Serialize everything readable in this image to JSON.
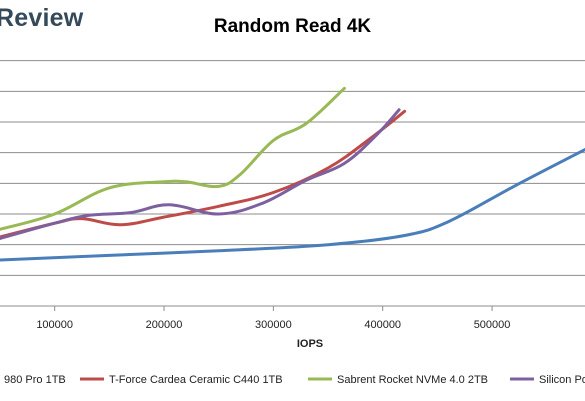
{
  "brand": "Review",
  "chart_data": {
    "type": "line",
    "title": "Random Read 4K",
    "xlabel": "IOPS",
    "ylabel": "",
    "grid": true,
    "legend_position": "bottom",
    "xlim": [
      50000,
      585000
    ],
    "ylim": [
      0,
      9
    ],
    "x_ticks": [
      100000,
      200000,
      300000,
      400000,
      500000
    ],
    "x_tick_labels": [
      "100000",
      "200000",
      "300000",
      "400000",
      "500000"
    ],
    "y_gridlines": [
      1,
      2,
      3,
      4,
      5,
      6,
      7,
      8
    ],
    "series": [
      {
        "name": "980 Pro 1TB",
        "legend_label": "980 Pro 1TB",
        "color": "#4a7ebb",
        "x": [
          50000,
          150000,
          250000,
          350000,
          420000,
          460000,
          520000,
          585000
        ],
        "y": [
          1.5,
          1.65,
          1.8,
          2.0,
          2.3,
          2.75,
          3.9,
          5.1
        ]
      },
      {
        "name": "T-Force Cardea Ceramic C440 1TB",
        "legend_label": "T-Force Cardea Ceramic C440 1TB",
        "color": "#be4b48",
        "x": [
          50000,
          100000,
          125000,
          160000,
          200000,
          250000,
          300000,
          350000,
          390000,
          420000
        ],
        "y": [
          2.25,
          2.7,
          2.85,
          2.65,
          2.9,
          3.25,
          3.7,
          4.5,
          5.5,
          6.35
        ]
      },
      {
        "name": "Sabrent Rocket NVMe 4.0 2TB",
        "legend_label": "Sabrent Rocket NVMe 4.0 2TB",
        "color": "#98b954",
        "x": [
          50000,
          100000,
          150000,
          200000,
          220000,
          250000,
          270000,
          300000,
          330000,
          365000
        ],
        "y": [
          2.5,
          3.0,
          3.85,
          4.05,
          4.05,
          3.9,
          4.3,
          5.4,
          5.95,
          7.1
        ]
      },
      {
        "name": "Silicon Power",
        "legend_label": "Silicon Po",
        "color": "#7d60a0",
        "x": [
          50000,
          100000,
          130000,
          170000,
          205000,
          250000,
          290000,
          330000,
          365000,
          395000,
          415000
        ],
        "y": [
          2.2,
          2.7,
          2.95,
          3.05,
          3.3,
          3.0,
          3.35,
          4.1,
          4.65,
          5.6,
          6.4
        ]
      }
    ]
  }
}
